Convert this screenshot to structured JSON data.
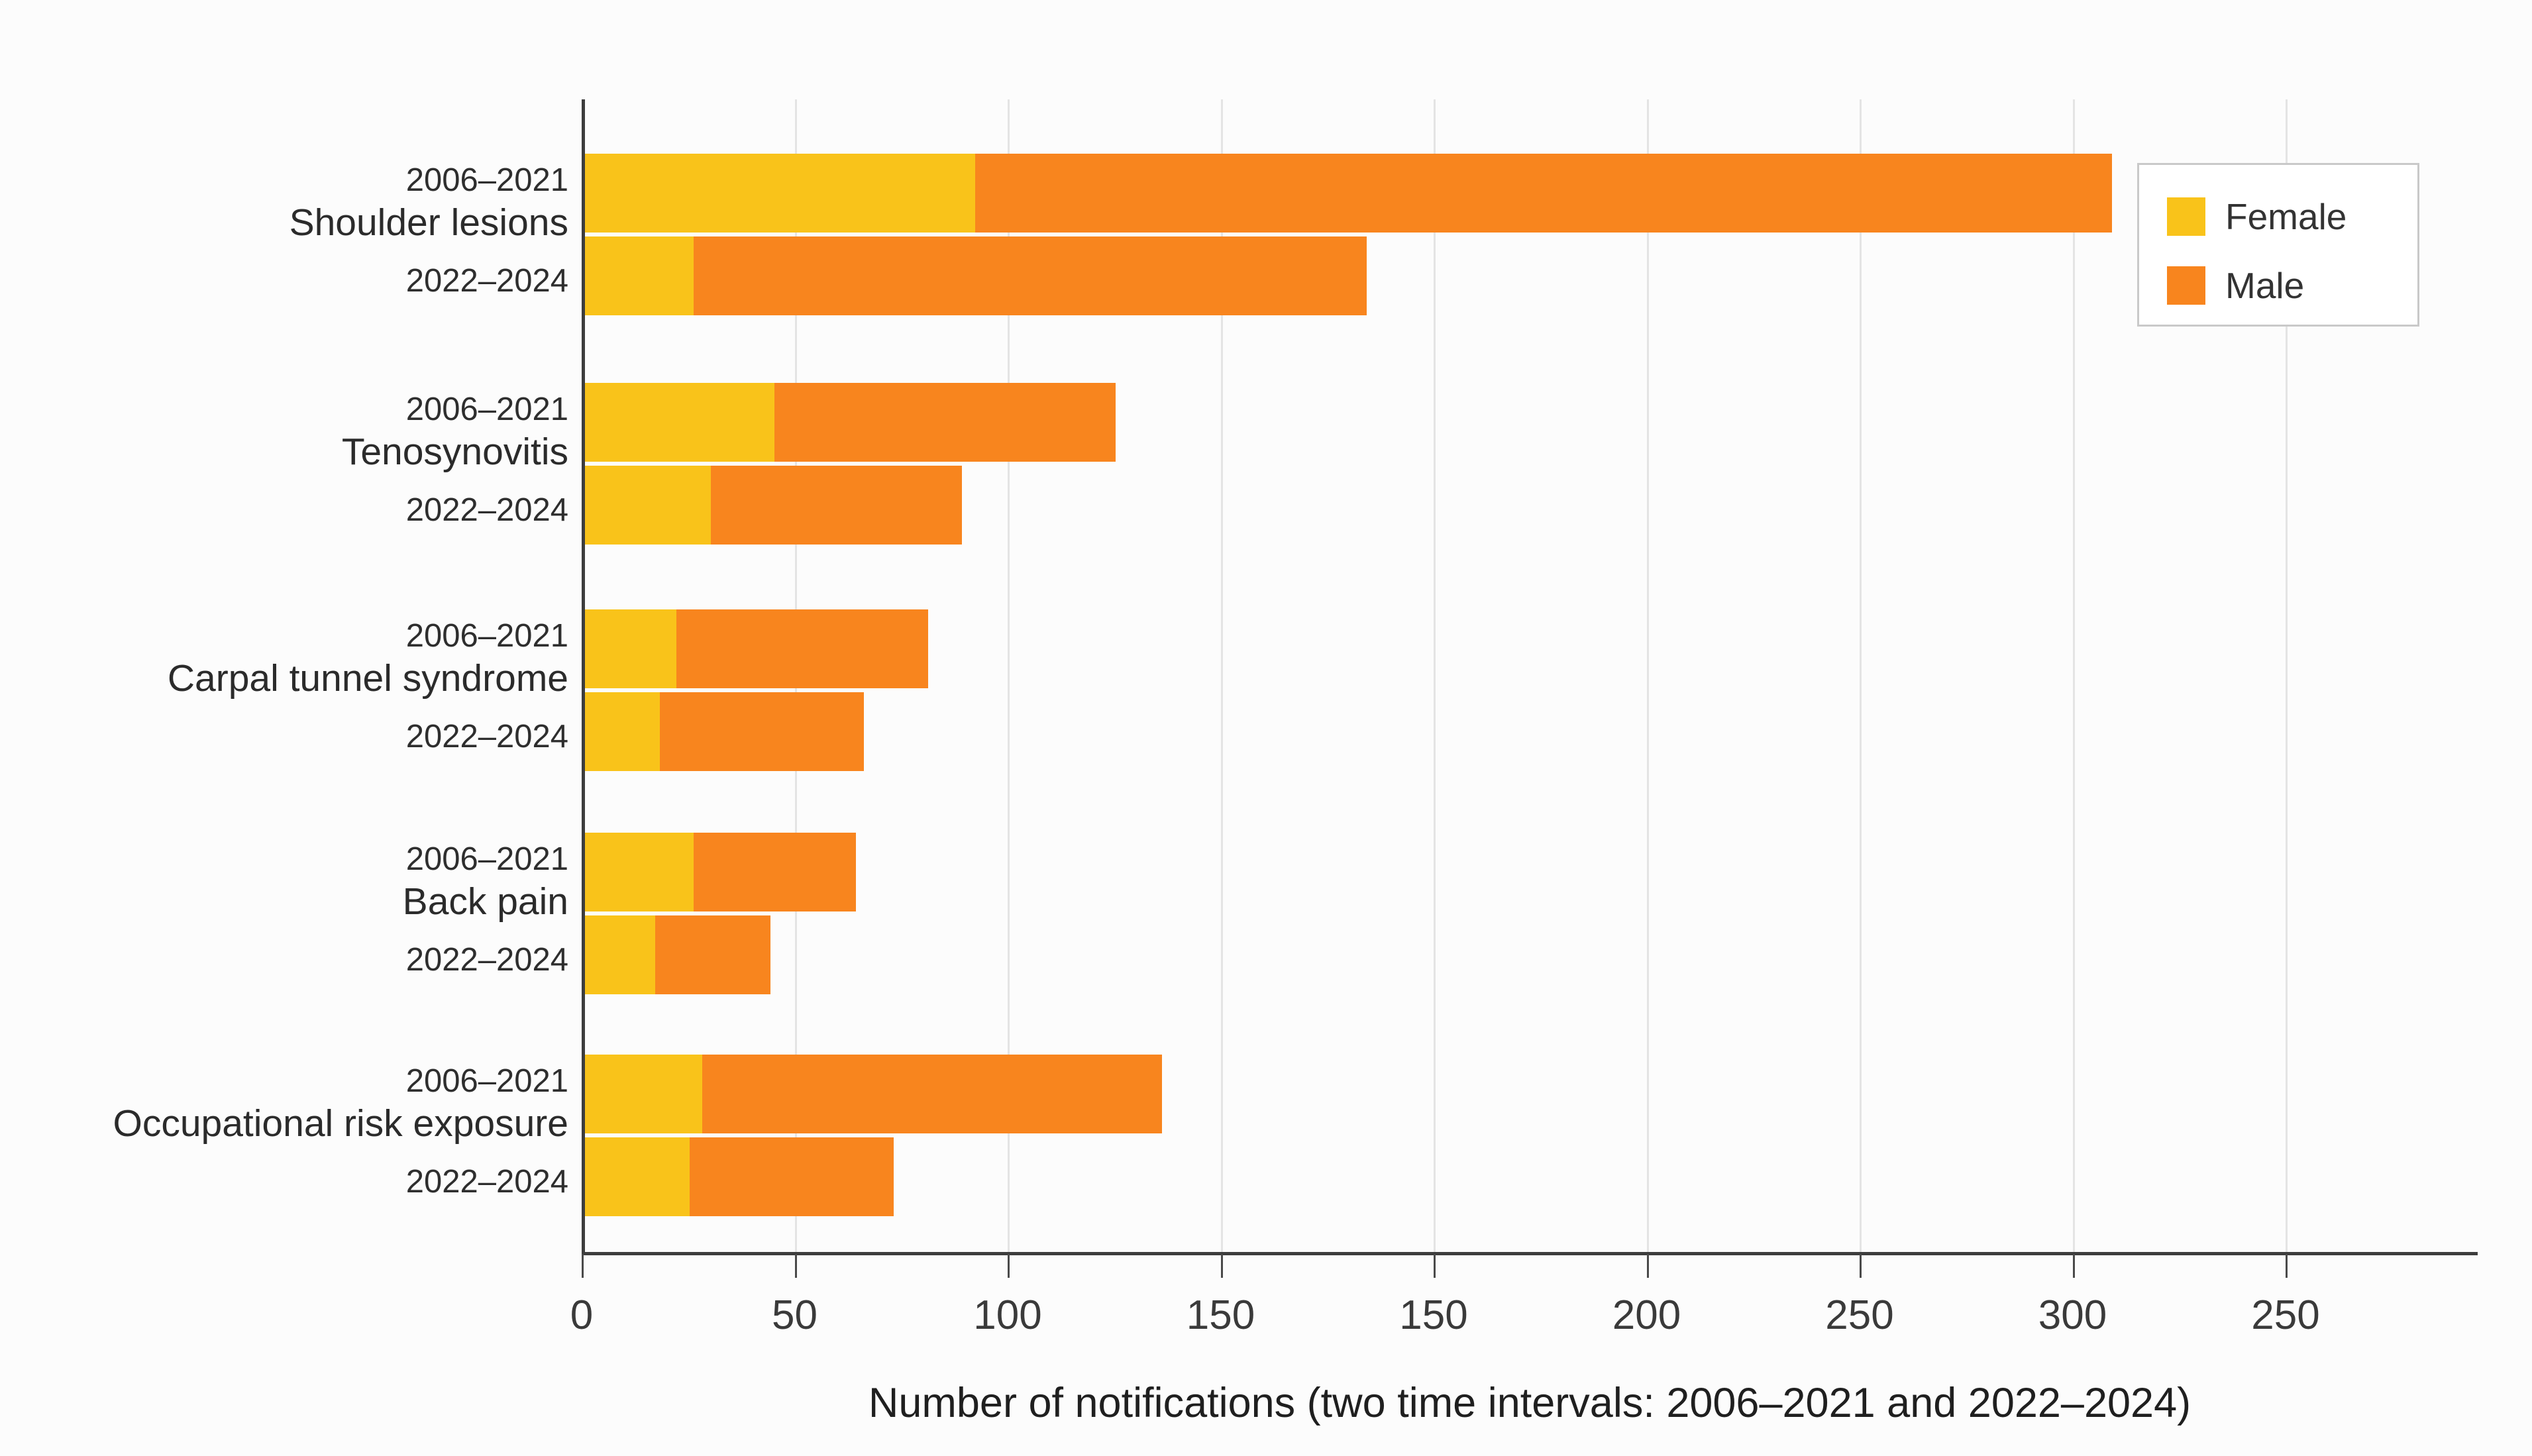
{
  "chart_data": {
    "type": "bar",
    "orientation": "horizontal",
    "stacked": true,
    "title": "",
    "xlabel": "Number of notifications (two time intervals: 2006–2021 and 2022–2024)",
    "ylabel": "",
    "axis_max": 445,
    "x_tick_interval": 50,
    "x_tick_labels": [
      "0",
      "50",
      "100",
      "150",
      "150",
      "200",
      "250",
      "300",
      "250"
    ],
    "grid": "vertical-light",
    "legend_position": "upper-right",
    "series_names": [
      "Female",
      "Male"
    ],
    "colors": {
      "female": "#F9C31A",
      "male": "#F8851E"
    },
    "legend": {
      "items": [
        {
          "label": "Female",
          "color": "#F9C31A"
        },
        {
          "label": "Male",
          "color": "#F8851E"
        }
      ]
    },
    "groups": [
      {
        "category": "Shoulder lesions",
        "bars": [
          {
            "period": "2006–2021",
            "female": 92,
            "male": 267
          },
          {
            "period": "2022–2024",
            "female": 26,
            "male": 158
          }
        ]
      },
      {
        "category": "Tenosynovitis",
        "bars": [
          {
            "period": "2006–2021",
            "female": 45,
            "male": 80
          },
          {
            "period": "2022–2024",
            "female": 30,
            "male": 59
          }
        ]
      },
      {
        "category": "Carpal tunnel syndrome",
        "bars": [
          {
            "period": "2006–2021",
            "female": 22,
            "male": 59
          },
          {
            "period": "2022–2024",
            "female": 18,
            "male": 48
          }
        ]
      },
      {
        "category": "Back pain",
        "bars": [
          {
            "period": "2006–2021",
            "female": 26,
            "male": 38
          },
          {
            "period": "2022–2024",
            "female": 17,
            "male": 27
          }
        ]
      },
      {
        "category": "Occupational risk exposure",
        "bars": [
          {
            "period": "2006–2021",
            "female": 28,
            "male": 108
          },
          {
            "period": "2022–2024",
            "female": 25,
            "male": 48
          }
        ]
      }
    ]
  }
}
